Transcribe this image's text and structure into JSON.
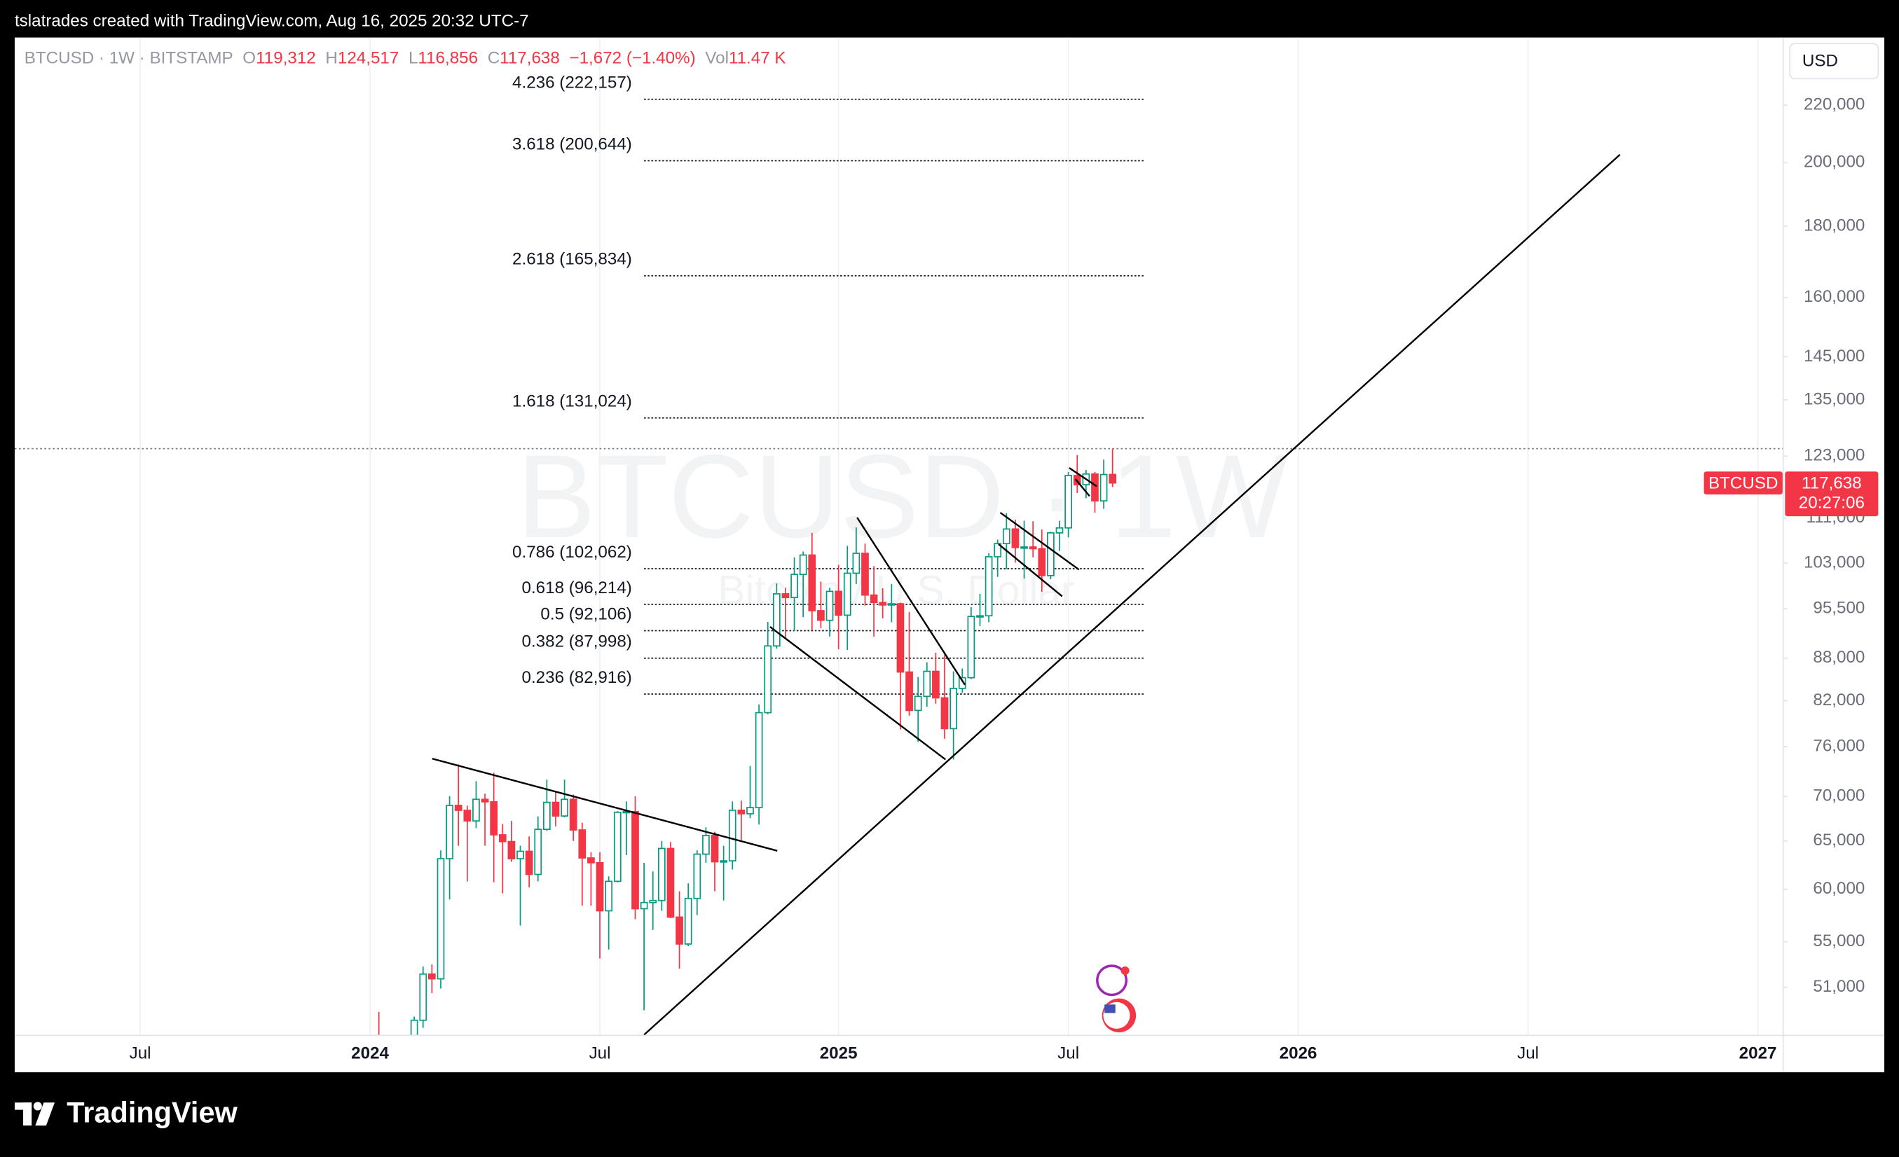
{
  "header": {
    "text": "tslatrades created with TradingView.com, Aug 16, 2025 20:32 UTC-7"
  },
  "footer": {
    "brand": "TradingView"
  },
  "chart_data": {
    "type": "candlestick",
    "legend": {
      "symbol": "BTCUSD · 1W · BITSTAMP",
      "open": {
        "prefix": "O",
        "text": "119,312"
      },
      "high": {
        "prefix": "H",
        "text": "124,517"
      },
      "low": {
        "prefix": "L",
        "text": "116,856"
      },
      "close": {
        "prefix": "C",
        "text": "117,638"
      },
      "change": "−1,672 (−1.40%)",
      "volume": {
        "prefix": "Vol",
        "text": "11.47 K"
      }
    },
    "watermark": {
      "title": "BTCUSD · 1W",
      "subtitle": "Bitcoin / U.S. Dollar"
    },
    "currency": "USD",
    "price_tag": {
      "symbol": "BTCUSD",
      "price": "117,638",
      "countdown": "20:27:06"
    },
    "up_color": "#089981",
    "down_color": "#f23645",
    "log_scale": true,
    "grid": "vertical",
    "open": [
      46970,
      41730,
      41580,
      42130,
      42580,
      48300,
      52140,
      51730,
      63120,
      68950,
      68390,
      67200,
      69650,
      69360,
      65670,
      64940,
      63120,
      63900,
      61500,
      66270,
      69300,
      67750,
      69650,
      66200,
      63200,
      62700,
      57900,
      60800,
      68170,
      68250,
      58100,
      58700,
      58900,
      64200,
      57300,
      54800,
      59100,
      63600,
      65600,
      62800,
      62900,
      68400,
      68000,
      68700,
      80400,
      89800,
      97900,
      97300,
      101100,
      104400,
      95200,
      93700,
      98300,
      94500,
      101300,
      104700,
      97700,
      96500,
      96100,
      96300,
      86000,
      80700,
      82600,
      86100,
      82400,
      78300,
      83700,
      85200,
      94300,
      94400,
      104100,
      106400,
      109000,
      105700,
      105800,
      105500,
      100900,
      108300,
      109200,
      119100,
      117300,
      119400,
      114200,
      119312
    ],
    "high": [
      48970,
      43580,
      42840,
      43880,
      48590,
      52800,
      52980,
      64000,
      70000,
      73800,
      68930,
      71770,
      70300,
      72800,
      66870,
      67200,
      64500,
      65500,
      67700,
      71950,
      70600,
      71950,
      70200,
      67000,
      63800,
      63800,
      61300,
      68300,
      69400,
      70000,
      62700,
      61800,
      65000,
      64900,
      59800,
      60600,
      64000,
      66500,
      66000,
      64500,
      69400,
      69500,
      73600,
      81500,
      93450,
      99600,
      98900,
      104000,
      105000,
      108300,
      99900,
      98900,
      102700,
      106000,
      109300,
      106400,
      102500,
      98800,
      99500,
      96500,
      95000,
      85300,
      87400,
      88800,
      88500,
      86100,
      86500,
      95800,
      97900,
      104700,
      107100,
      111900,
      110700,
      110500,
      110400,
      108900,
      108500,
      110500,
      119800,
      123200,
      120200,
      119800,
      122300,
      124517
    ],
    "low": [
      41500,
      40280,
      38500,
      41880,
      42260,
      47700,
      50520,
      50900,
      59000,
      64500,
      60780,
      66400,
      64500,
      60700,
      59600,
      62800,
      56500,
      60200,
      60800,
      66100,
      66600,
      67600,
      65000,
      58400,
      58400,
      53500,
      54300,
      60700,
      63500,
      57100,
      49100,
      56100,
      57900,
      57200,
      52600,
      54600,
      57500,
      62700,
      59800,
      58900,
      62000,
      65100,
      67500,
      66800,
      80200,
      89400,
      90800,
      92000,
      94200,
      92200,
      92500,
      91200,
      89300,
      89200,
      99500,
      96000,
      91200,
      94000,
      93400,
      78200,
      80000,
      76600,
      81200,
      81600,
      77000,
      74400,
      83100,
      85000,
      92800,
      93400,
      100700,
      102000,
      103100,
      100400,
      104000,
      98200,
      100300,
      105100,
      107500,
      115700,
      114700,
      112000,
      112700,
      116856
    ],
    "close": [
      41730,
      41580,
      42130,
      42580,
      48300,
      52140,
      51730,
      63120,
      68950,
      68390,
      67200,
      69650,
      69360,
      65670,
      64940,
      63120,
      63900,
      61500,
      66270,
      69300,
      67750,
      69650,
      66200,
      63200,
      62700,
      57900,
      60800,
      68170,
      68250,
      58100,
      58700,
      58900,
      64200,
      57300,
      54800,
      59100,
      63600,
      65600,
      62800,
      62900,
      68400,
      68000,
      68700,
      80400,
      89800,
      97900,
      97300,
      101100,
      104400,
      95200,
      93700,
      98300,
      94500,
      101300,
      104700,
      97700,
      96500,
      96100,
      96300,
      86000,
      80700,
      82600,
      86100,
      82400,
      78300,
      83700,
      85200,
      94300,
      94400,
      104100,
      106400,
      109000,
      105700,
      105800,
      105500,
      100900,
      108300,
      109200,
      119100,
      117300,
      119400,
      114200,
      119300,
      117638
    ],
    "xlim": [
      -41.2,
      158.8
    ],
    "xticks": [
      {
        "value": -27,
        "label": "Jul"
      },
      {
        "value": -1,
        "label": "2024"
      },
      {
        "value": 25,
        "label": "Jul"
      },
      {
        "value": 52,
        "label": "2025"
      },
      {
        "value": 78,
        "label": "Jul"
      },
      {
        "value": 104,
        "label": "2026"
      },
      {
        "value": 130,
        "label": "Jul"
      },
      {
        "value": 156,
        "label": "2027"
      }
    ],
    "ylim": [
      47150,
      245600
    ],
    "yticks": [
      {
        "value": 51000,
        "label": "51,000"
      },
      {
        "value": 55000,
        "label": "55,000"
      },
      {
        "value": 60000,
        "label": "60,000"
      },
      {
        "value": 65000,
        "label": "65,000"
      },
      {
        "value": 70000,
        "label": "70,000"
      },
      {
        "value": 76000,
        "label": "76,000"
      },
      {
        "value": 82000,
        "label": "82,000"
      },
      {
        "value": 88000,
        "label": "88,000"
      },
      {
        "value": 95500,
        "label": "95,500"
      },
      {
        "value": 103000,
        "label": "103,000"
      },
      {
        "value": 111000,
        "label": "111,000"
      },
      {
        "value": 123000,
        "label": "123,000"
      },
      {
        "value": 135000,
        "label": "135,000"
      },
      {
        "value": 145000,
        "label": "145,000"
      },
      {
        "value": 160000,
        "label": "160,000"
      },
      {
        "value": 180000,
        "label": "180,000"
      },
      {
        "value": 200000,
        "label": "200,000"
      },
      {
        "value": 220000,
        "label": "220,000"
      }
    ],
    "fib_levels": [
      {
        "label": "4.236 (222,157)",
        "price": 222157
      },
      {
        "label": "3.618 (200,644)",
        "price": 200644
      },
      {
        "label": "2.618 (165,834)",
        "price": 165834
      },
      {
        "label": "1.618 (131,024)",
        "price": 131024
      },
      {
        "label": "0.786 (102,062)",
        "price": 102062
      },
      {
        "label": "0.618 (96,214)",
        "price": 96214
      },
      {
        "label": "0.5 (92,106)",
        "price": 92106
      },
      {
        "label": "0.382 (87,998)",
        "price": 87998
      },
      {
        "label": "0.236 (82,916)",
        "price": 82916
      }
    ],
    "fib_range": [
      30.0,
      86.6
    ],
    "trend_lines": [
      {
        "x": [
          6.03,
          45.07
        ],
        "y": [
          74500,
          63950
        ]
      },
      {
        "x": [
          30.0,
          140.4
        ],
        "y": [
          47150,
          202700
        ]
      },
      {
        "x": [
          44.25,
          64.1
        ],
        "y": [
          92700,
          74400
        ]
      },
      {
        "x": [
          54.1,
          66.3
        ],
        "y": [
          111100,
          84200
        ]
      },
      {
        "x": [
          70.3,
          79.2
        ],
        "y": [
          112000,
          101900
        ]
      },
      {
        "x": [
          70.1,
          77.3
        ],
        "y": [
          106300,
          97500
        ]
      },
      {
        "x": [
          78.1,
          81.2
        ],
        "y": [
          120600,
          117000
        ]
      },
      {
        "x": [
          78.8,
          80.4
        ],
        "y": [
          118400,
          115100
        ]
      }
    ]
  }
}
